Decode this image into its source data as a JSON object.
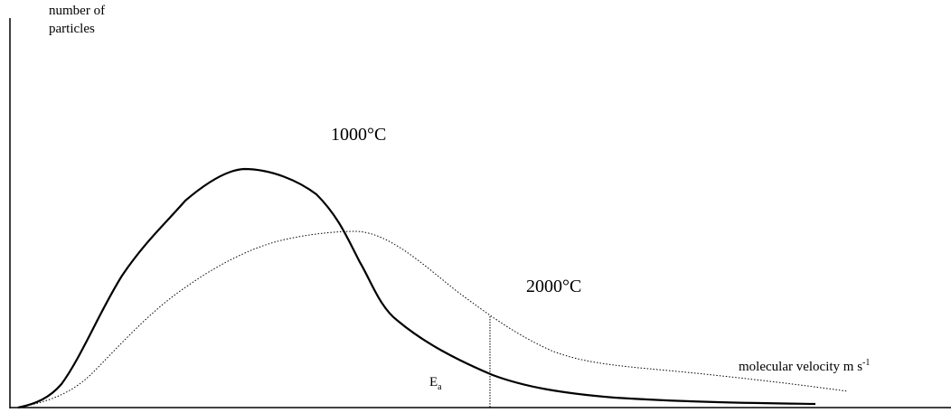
{
  "axes": {
    "y_label_line1": "number of",
    "y_label_line2": "particles",
    "x_label": "molecular velocity m s",
    "x_label_superscript": "-1"
  },
  "curves": [
    {
      "name": "1000°C",
      "label": "1000°C",
      "style": "solid"
    },
    {
      "name": "2000°C",
      "label": "2000°C",
      "style": "dotted"
    }
  ],
  "annotations": {
    "activation_energy": "E",
    "activation_energy_subscript": "a"
  }
}
